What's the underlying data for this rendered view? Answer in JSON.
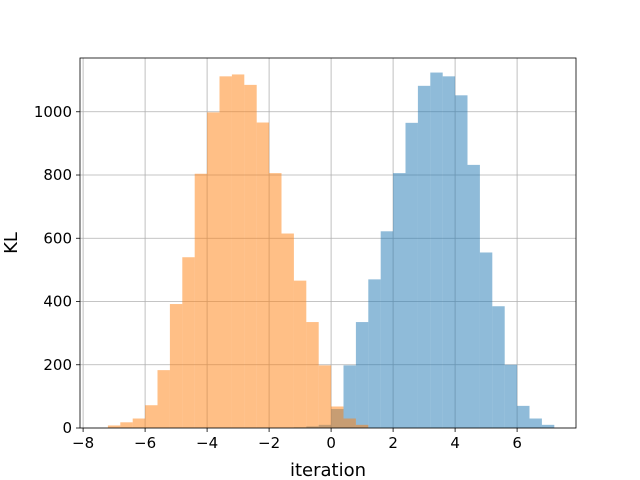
{
  "chart_data": {
    "type": "bar",
    "title": "",
    "xlabel": "iteration",
    "ylabel": "KL",
    "xlim": [
      -8.1,
      7.9
    ],
    "ylim": [
      0,
      1170
    ],
    "grid": true,
    "legend": "none",
    "xticks": [
      -8,
      -6,
      -4,
      -2,
      0,
      2,
      4,
      6
    ],
    "xtick_labels": [
      "−8",
      "−6",
      "−4",
      "−2",
      "0",
      "2",
      "4",
      "6"
    ],
    "yticks": [
      0,
      200,
      400,
      600,
      800,
      1000
    ],
    "ytick_labels": [
      "0",
      "200",
      "400",
      "600",
      "800",
      "1000"
    ],
    "series": [
      {
        "color": "#1f77b4",
        "opacity": 0.5,
        "bin_width": 0.4,
        "bins": [
          [
            -1.2,
            2
          ],
          [
            -0.8,
            5
          ],
          [
            -0.4,
            10
          ],
          [
            0.0,
            60
          ],
          [
            0.4,
            198
          ],
          [
            0.8,
            335
          ],
          [
            1.2,
            470
          ],
          [
            1.6,
            622
          ],
          [
            2.0,
            806
          ],
          [
            2.4,
            965
          ],
          [
            2.8,
            1082
          ],
          [
            3.2,
            1124
          ],
          [
            3.6,
            1112
          ],
          [
            4.0,
            1052
          ],
          [
            4.4,
            832
          ],
          [
            4.8,
            555
          ],
          [
            5.2,
            385
          ],
          [
            5.6,
            200
          ],
          [
            6.0,
            70
          ],
          [
            6.4,
            30
          ],
          [
            6.8,
            10
          ]
        ]
      },
      {
        "color": "#ff7f0e",
        "opacity": 0.5,
        "bin_width": 0.4,
        "bins": [
          [
            -7.2,
            8
          ],
          [
            -6.8,
            18
          ],
          [
            -6.4,
            30
          ],
          [
            -6.0,
            72
          ],
          [
            -5.6,
            183
          ],
          [
            -5.2,
            392
          ],
          [
            -4.8,
            540
          ],
          [
            -4.4,
            804
          ],
          [
            -4.0,
            998
          ],
          [
            -3.6,
            1112
          ],
          [
            -3.2,
            1118
          ],
          [
            -2.8,
            1085
          ],
          [
            -2.4,
            966
          ],
          [
            -2.0,
            806
          ],
          [
            -1.6,
            615
          ],
          [
            -1.2,
            466
          ],
          [
            -0.8,
            335
          ],
          [
            -0.4,
            198
          ],
          [
            0.0,
            68
          ],
          [
            0.4,
            30
          ],
          [
            0.8,
            10
          ]
        ]
      }
    ]
  }
}
